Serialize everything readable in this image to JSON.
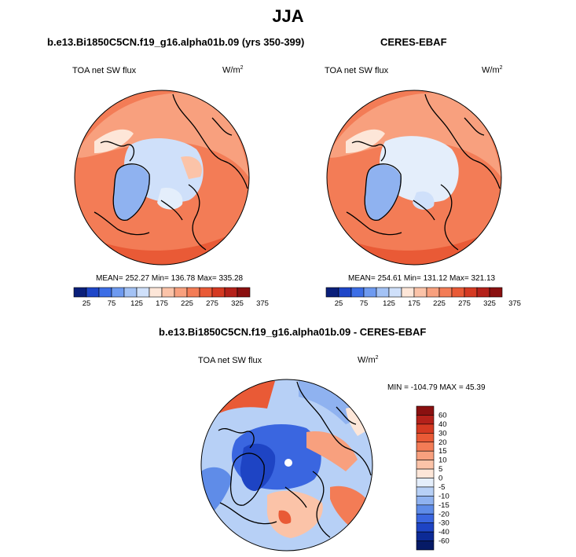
{
  "figure_title": "JJA",
  "panels": [
    {
      "title": "b.e13.Bi1850C5CN.f19_g16.alpha01b.09 (yrs 350-399)",
      "variable": "TOA net SW flux",
      "units_base": "W/m",
      "units_exp": "2",
      "stats": "MEAN= 252.27   Min= 136.78   Max= 335.28"
    },
    {
      "title": "CERES-EBAF",
      "variable": "TOA net SW flux",
      "units_base": "W/m",
      "units_exp": "2",
      "stats": "MEAN= 254.61   Min= 131.12   Max= 321.13"
    },
    {
      "title": "b.e13.Bi1850C5CN.f19_g16.alpha01b.09 - CERES-EBAF",
      "variable": "TOA net SW flux",
      "units_base": "W/m",
      "units_exp": "2",
      "stats": "MIN = -104.79 MAX =  45.39"
    }
  ],
  "abs_colorbar": {
    "labels": [
      "25",
      "75",
      "125",
      "175",
      "225",
      "275",
      "325",
      "375"
    ],
    "colors": [
      "#0a1f7a",
      "#1e46c8",
      "#3c6ee6",
      "#6e9af0",
      "#a3c2f5",
      "#cfe0fa",
      "#fde6d8",
      "#fbc3a8",
      "#f8a07e",
      "#f37c56",
      "#e95a36",
      "#d53a22",
      "#b4211a",
      "#8a1010"
    ]
  },
  "diff_colorbar": {
    "labels": [
      "60",
      "40",
      "30",
      "20",
      "15",
      "10",
      "5",
      "0",
      "-5",
      "-10",
      "-15",
      "-20",
      "-30",
      "-40",
      "-60"
    ],
    "colors": [
      "#8a1010",
      "#b4211a",
      "#d53a22",
      "#e95a36",
      "#f37c56",
      "#f8a07e",
      "#fbc3a8",
      "#fde6d8",
      "#e4eefb",
      "#b7d0f6",
      "#8fb2f0",
      "#5f8ce8",
      "#3a66e0",
      "#1e44c4",
      "#0c2a96",
      "#061a66"
    ]
  }
}
